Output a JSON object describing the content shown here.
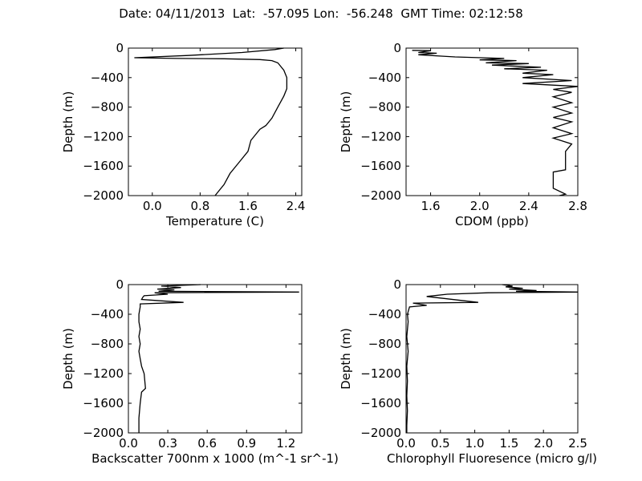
{
  "figure_title": "Date: 04/11/2013  Lat:  -57.095 Lon:  -56.248  GMT Time: 02:12:58",
  "chart_data": [
    {
      "type": "line",
      "xlabel": "Temperature (C)",
      "ylabel": "Depth (m)",
      "xlim": [
        -0.4,
        2.5
      ],
      "ylim": [
        -2000,
        0
      ],
      "xticks": [
        0.0,
        0.8,
        1.6,
        2.4
      ],
      "xtick_labels": [
        "0.0",
        "0.8",
        "1.6",
        "2.4"
      ],
      "yticks": [
        0,
        -400,
        -800,
        -1200,
        -1600,
        -2000
      ],
      "ytick_labels": [
        "0",
        "−400",
        "−800",
        "−1200",
        "−1600",
        "−2000"
      ],
      "grid": false,
      "series": [
        {
          "x": [
            2.2,
            2.05,
            1.5,
            0.6,
            -0.3,
            0.4,
            1.2,
            1.8,
            2.0,
            2.1,
            2.2,
            2.25,
            2.25,
            2.2,
            2.1,
            2.0,
            1.9,
            1.8,
            1.65,
            1.6,
            1.45,
            1.3,
            1.2,
            1.1,
            1.05
          ],
          "y": [
            0,
            -20,
            -60,
            -100,
            -130,
            -140,
            -145,
            -155,
            -170,
            -200,
            -300,
            -400,
            -550,
            -650,
            -800,
            -950,
            -1050,
            -1100,
            -1250,
            -1400,
            -1550,
            -1700,
            -1850,
            -1950,
            -2000
          ]
        }
      ]
    },
    {
      "type": "line",
      "xlabel": "CDOM (ppb)",
      "ylabel": "Depth (m)",
      "xlim": [
        1.4,
        2.8
      ],
      "ylim": [
        -2000,
        0
      ],
      "xticks": [
        1.6,
        2.0,
        2.4,
        2.8
      ],
      "xtick_labels": [
        "1.6",
        "2.0",
        "2.4",
        "2.8"
      ],
      "yticks": [
        0,
        -400,
        -800,
        -1200,
        -1600,
        -2000
      ],
      "ytick_labels": [
        "0",
        "−400",
        "−800",
        "−1200",
        "−1600",
        "−2000"
      ],
      "grid": false,
      "series": [
        {
          "x": [
            1.45,
            1.6,
            1.5,
            1.65,
            1.5,
            1.7,
            1.8,
            2.2,
            2.0,
            2.3,
            2.05,
            2.4,
            2.1,
            2.5,
            2.2,
            2.55,
            2.35,
            2.6,
            2.35,
            2.75,
            2.35,
            2.8,
            2.6,
            2.75,
            2.6,
            2.75,
            2.6,
            2.75,
            2.6,
            2.75,
            2.6,
            2.75,
            2.6,
            2.75,
            2.7,
            2.7,
            2.6,
            2.6,
            2.7,
            2.65
          ],
          "y": [
            -30,
            -35,
            -60,
            -70,
            -90,
            -110,
            -120,
            -140,
            -160,
            -170,
            -200,
            -210,
            -230,
            -260,
            -280,
            -300,
            -340,
            -360,
            -400,
            -440,
            -480,
            -520,
            -560,
            -600,
            -660,
            -740,
            -800,
            -880,
            -940,
            -1000,
            -1080,
            -1160,
            -1220,
            -1300,
            -1400,
            -1650,
            -1680,
            -1900,
            -1980,
            -2000
          ]
        }
      ]
    },
    {
      "type": "line",
      "xlabel": "Backscatter 700nm x 1000 (m^-1 sr^-1)",
      "ylabel": "Depth (m)",
      "xlim": [
        0.0,
        1.32
      ],
      "ylim": [
        -2000,
        0
      ],
      "xticks": [
        0.0,
        0.3,
        0.6,
        0.9,
        1.2
      ],
      "xtick_labels": [
        "0.0",
        "0.3",
        "0.6",
        "0.9",
        "1.2"
      ],
      "yticks": [
        0,
        -400,
        -800,
        -1200,
        -1600,
        -2000
      ],
      "ytick_labels": [
        "0",
        "−400",
        "−800",
        "−1200",
        "−1600",
        "−2000"
      ],
      "grid": false,
      "series": [
        {
          "x": [
            0.55,
            0.25,
            0.4,
            0.22,
            0.35,
            0.23,
            1.3,
            0.2,
            0.3,
            0.12,
            0.11,
            0.1,
            0.42,
            0.09,
            0.09,
            0.08,
            0.08,
            0.09,
            0.08,
            0.09,
            0.08,
            0.09,
            0.1,
            0.12,
            0.13,
            0.1,
            0.09,
            0.08,
            0.08
          ],
          "y": [
            0,
            -20,
            -40,
            -60,
            -70,
            -90,
            -100,
            -110,
            -130,
            -150,
            -170,
            -200,
            -240,
            -260,
            -300,
            -400,
            -500,
            -600,
            -700,
            -800,
            -900,
            -1000,
            -1100,
            -1200,
            -1400,
            -1450,
            -1600,
            -1800,
            -2000
          ]
        }
      ]
    },
    {
      "type": "line",
      "xlabel": "Chlorophyll Fluoresence (micro g/l)",
      "ylabel": "Depth (m)",
      "xlim": [
        0.0,
        2.5
      ],
      "ylim": [
        -2000,
        0
      ],
      "xticks": [
        0.0,
        0.5,
        1.0,
        1.5,
        2.0,
        2.5
      ],
      "xtick_labels": [
        "0.0",
        "0.5",
        "1.0",
        "1.5",
        "2.0",
        "2.5"
      ],
      "yticks": [
        0,
        -400,
        -800,
        -1200,
        -1600,
        -2000
      ],
      "ytick_labels": [
        "0",
        "−400",
        "−800",
        "−1200",
        "−1600",
        "−2000"
      ],
      "grid": false,
      "series": [
        {
          "x": [
            1.4,
            1.55,
            1.45,
            1.7,
            1.5,
            1.9,
            1.6,
            2.5,
            1.2,
            0.6,
            0.3,
            1.05,
            0.1,
            0.3,
            0.05,
            0.02,
            0.03,
            0.01,
            0.03,
            0.01,
            0.02,
            0.01,
            0.02,
            0.01,
            0.01
          ],
          "y": [
            0,
            -20,
            -30,
            -50,
            -60,
            -80,
            -90,
            -100,
            -110,
            -130,
            -160,
            -240,
            -250,
            -280,
            -300,
            -400,
            -500,
            -700,
            -900,
            -1100,
            -1300,
            -1500,
            -1700,
            -1900,
            -2000
          ]
        }
      ]
    }
  ]
}
